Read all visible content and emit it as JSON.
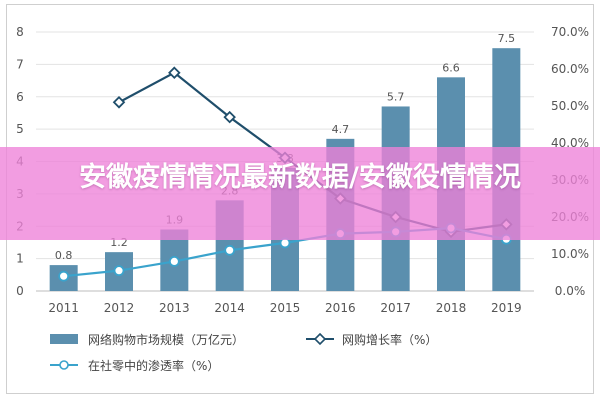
{
  "banner": {
    "title": "安徽疫情情况最新数据/安徽役情情况"
  },
  "chart_data": {
    "type": "bar",
    "categories": [
      "2011",
      "2012",
      "2013",
      "2014",
      "2015",
      "2016",
      "2017",
      "2018",
      "2019"
    ],
    "left_axis": {
      "ylim": [
        0,
        8
      ],
      "ticks": [
        "0",
        "1",
        "2",
        "3",
        "4",
        "5",
        "6",
        "7",
        "8"
      ]
    },
    "right_axis": {
      "ylim": [
        0,
        70
      ],
      "ticks": [
        "0.0%",
        "10.0%",
        "20.0%",
        "30.0%",
        "40.0%",
        "50.0%",
        "60.0%",
        "70.0%"
      ]
    },
    "series": [
      {
        "name": "网络购物市场规模（万亿元）",
        "type": "bar",
        "axis": "left",
        "color": "#5b8fae",
        "values": [
          0.8,
          1.2,
          1.9,
          2.8,
          3.8,
          4.7,
          5.7,
          6.6,
          7.5
        ],
        "labels": [
          "0.8",
          "1.2",
          "1.9",
          "2.8",
          "3.8",
          "4.7",
          "5.7",
          "6.6",
          "7.5"
        ]
      },
      {
        "name": "网购增长率（%）",
        "type": "line",
        "axis": "right",
        "color": "#1f4e6b",
        "values": [
          null,
          51,
          59,
          47,
          36,
          25,
          20,
          16,
          18
        ]
      },
      {
        "name": "在社零中的渗透率（%）",
        "type": "line",
        "axis": "right",
        "color": "#3aa3cc",
        "values": [
          4,
          5.5,
          8,
          11,
          13,
          15.5,
          16,
          17,
          14
        ]
      }
    ],
    "grid": true,
    "legend_position": "bottom"
  }
}
